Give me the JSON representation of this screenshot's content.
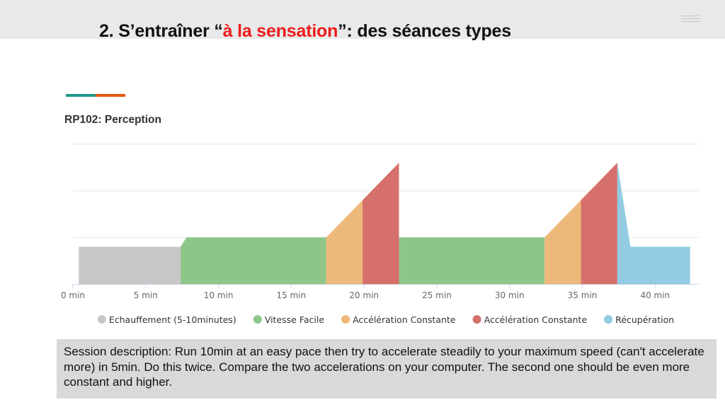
{
  "header": {
    "title_prefix": "2. S’entraîner “",
    "title_highlight": "à la sensation",
    "title_suffix": "”: des séances types"
  },
  "colors": {
    "highlight": "#ee1c1c",
    "accent_line": [
      "#1b998b",
      "#e8590c"
    ]
  },
  "icons": {
    "menu": "menu-icon"
  },
  "chart_data": {
    "type": "area",
    "title": "RP102: Perception",
    "xlabel": "",
    "ylabel": "",
    "x_unit": "min",
    "xlim": [
      0,
      43
    ],
    "ylim": [
      0,
      4
    ],
    "x_ticks": [
      0,
      5,
      10,
      15,
      20,
      25,
      30,
      35,
      40
    ],
    "x_tick_labels": [
      "0 min",
      "5 min",
      "10 min",
      "15 min",
      "20 min",
      "25 min",
      "30 min",
      "35 min",
      "40 min"
    ],
    "y_gridlines": [
      1,
      2,
      3
    ],
    "grid": true,
    "legend_position": "bottom",
    "series": [
      {
        "name": "Echauffement (5-10minutes)",
        "color": "#c8c8c8",
        "points": [
          [
            0.4,
            0
          ],
          [
            0.4,
            0.8
          ],
          [
            7.4,
            0.8
          ],
          [
            7.4,
            0
          ]
        ]
      },
      {
        "name": "Vitesse Facile",
        "color": "#8ec68a",
        "points": [
          [
            7.4,
            0
          ],
          [
            7.4,
            0.8
          ],
          [
            7.8,
            1.0
          ],
          [
            17.4,
            1.0
          ],
          [
            17.4,
            0
          ]
        ]
      },
      {
        "name": "Accélération Constante",
        "color": "#edb97a",
        "points": [
          [
            17.4,
            0
          ],
          [
            17.4,
            1.0
          ],
          [
            19.9,
            1.8
          ],
          [
            19.9,
            0
          ]
        ]
      },
      {
        "name": "Accélération Constante",
        "color": "#d6706c",
        "points": [
          [
            19.9,
            0
          ],
          [
            19.9,
            1.8
          ],
          [
            22.4,
            2.6
          ],
          [
            22.4,
            0
          ]
        ]
      },
      {
        "name": "Vitesse Facile",
        "color": "#8ec68a",
        "show_in_legend": false,
        "points": [
          [
            22.4,
            0
          ],
          [
            22.4,
            1.0
          ],
          [
            32.4,
            1.0
          ],
          [
            32.4,
            0
          ]
        ]
      },
      {
        "name": "Accélération Constante",
        "color": "#edb97a",
        "show_in_legend": false,
        "points": [
          [
            32.4,
            0
          ],
          [
            32.4,
            1.0
          ],
          [
            34.9,
            1.8
          ],
          [
            34.9,
            0
          ]
        ]
      },
      {
        "name": "Accélération Constante",
        "color": "#d6706c",
        "show_in_legend": false,
        "points": [
          [
            34.9,
            0
          ],
          [
            34.9,
            1.8
          ],
          [
            37.4,
            2.6
          ],
          [
            37.4,
            0
          ]
        ]
      },
      {
        "name": "Récupération",
        "color": "#92cbe2",
        "points": [
          [
            37.4,
            0
          ],
          [
            37.4,
            2.6
          ],
          [
            38.3,
            0.8
          ],
          [
            42.4,
            0.8
          ],
          [
            42.4,
            0
          ]
        ]
      }
    ]
  },
  "description": "Session description: Run 10min at an easy pace then try to accelerate steadily to your maximum speed (can't accelerate more) in 5min. Do this twice. Compare the two accelerations on your computer. The second one should be even more constant and higher."
}
